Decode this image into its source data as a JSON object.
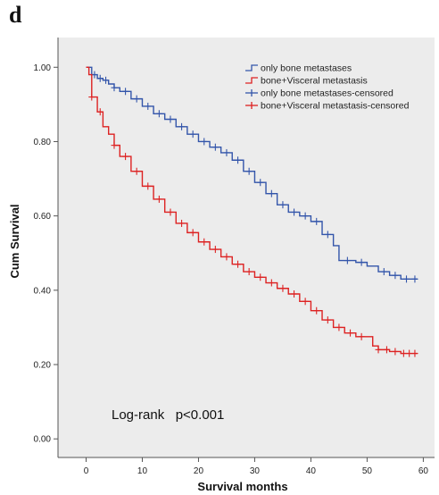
{
  "panel_label": "d",
  "chart_data": {
    "type": "line",
    "xlabel": "Survival months",
    "ylabel": "Cum Survival",
    "xlim": [
      -5,
      62
    ],
    "ylim": [
      -0.05,
      1.08
    ],
    "x_ticks": [
      0,
      10,
      20,
      30,
      40,
      50,
      60
    ],
    "x_tick_labels": [
      "0",
      "10",
      "20",
      "30",
      "40",
      "50",
      "60"
    ],
    "y_ticks": [
      0.0,
      0.2,
      0.4,
      0.6,
      0.8,
      1.0
    ],
    "y_tick_labels": [
      "0.00",
      "0.20",
      "0.40",
      "0.60",
      "0.80",
      "1.00"
    ],
    "grid": false,
    "legend_position": "top-right",
    "annotation": "Log-rank   p<0.001",
    "legend": [
      {
        "label": "only bone metastases",
        "marker": "step",
        "color": "#3355aa"
      },
      {
        "label": "bone+Visceral metastasis",
        "marker": "step",
        "color": "#dd2222"
      },
      {
        "label": "only bone metastases-censored",
        "marker": "cross",
        "color": "#3355aa"
      },
      {
        "label": "bone+Visceral metastasis-censored",
        "marker": "cross",
        "color": "#dd2222"
      }
    ],
    "series": [
      {
        "name": "only bone metastases",
        "color": "#3355aa",
        "x": [
          0,
          1,
          2,
          3,
          4,
          5,
          6,
          8,
          10,
          12,
          14,
          16,
          18,
          20,
          22,
          24,
          26,
          28,
          30,
          32,
          34,
          36,
          38,
          40,
          42,
          44,
          45,
          46,
          48,
          50,
          52,
          54,
          56,
          58,
          59
        ],
        "y": [
          1.0,
          0.98,
          0.97,
          0.965,
          0.955,
          0.945,
          0.935,
          0.915,
          0.895,
          0.875,
          0.86,
          0.84,
          0.82,
          0.8,
          0.785,
          0.77,
          0.75,
          0.72,
          0.69,
          0.66,
          0.63,
          0.61,
          0.6,
          0.585,
          0.55,
          0.52,
          0.48,
          0.48,
          0.475,
          0.465,
          0.45,
          0.44,
          0.43,
          0.43,
          0.43
        ],
        "censored_x": [
          1.5,
          2.5,
          3.5,
          5,
          7,
          9,
          11,
          13,
          15,
          17,
          19,
          21,
          23,
          25,
          27,
          29,
          31,
          33,
          35,
          37,
          39,
          41,
          43,
          46.5,
          49,
          53,
          55,
          57,
          58.5
        ]
      },
      {
        "name": "bone+Visceral metastasis",
        "color": "#dd2222",
        "x": [
          0,
          0.5,
          1,
          2,
          3,
          4,
          5,
          6,
          8,
          10,
          12,
          14,
          16,
          18,
          20,
          22,
          24,
          26,
          28,
          30,
          32,
          34,
          36,
          38,
          40,
          42,
          44,
          46,
          48,
          50,
          51,
          52,
          54,
          56,
          58,
          59
        ],
        "y": [
          1.0,
          0.98,
          0.92,
          0.88,
          0.84,
          0.82,
          0.79,
          0.76,
          0.72,
          0.68,
          0.645,
          0.61,
          0.58,
          0.555,
          0.53,
          0.51,
          0.49,
          0.47,
          0.45,
          0.435,
          0.42,
          0.405,
          0.39,
          0.37,
          0.345,
          0.32,
          0.3,
          0.285,
          0.275,
          0.275,
          0.25,
          0.24,
          0.235,
          0.23,
          0.23,
          0.23
        ],
        "censored_x": [
          1,
          2.5,
          5,
          7,
          9,
          11,
          13,
          15,
          17,
          19,
          21,
          23,
          25,
          27,
          29,
          31,
          33,
          35,
          37,
          39,
          41,
          43,
          45,
          47,
          49,
          52,
          53.5,
          55,
          56.5,
          57.5,
          58.5
        ]
      }
    ]
  }
}
